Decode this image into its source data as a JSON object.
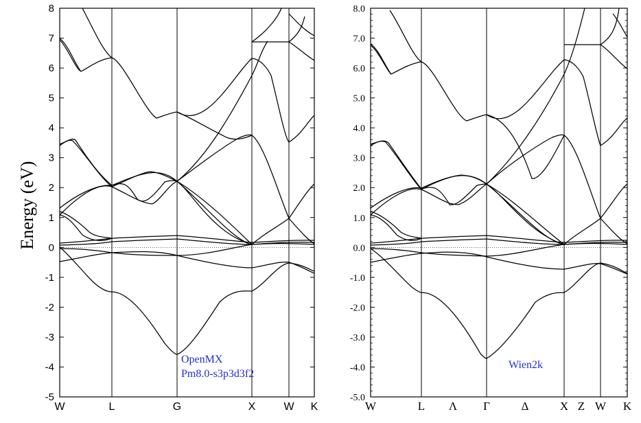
{
  "ylabel": "Energy (eV)",
  "chart_data": [
    {
      "type": "line",
      "ylim": [
        -5,
        8
      ],
      "ytick_labels": [
        "-5",
        "-4",
        "-3",
        "-2",
        "-1",
        "0",
        "1",
        "2",
        "3",
        "4",
        "5",
        "6",
        "7",
        "8"
      ],
      "kpoint_labels": [
        "W",
        "L",
        "G",
        "X",
        "W",
        "K"
      ],
      "annotation_lines": [
        "OpenMX",
        "Pm8.0-s3p3d3f2"
      ],
      "series": [
        {
          "x": [
            0,
            0.5,
            1
          ],
          "y": [
            -0.55,
            -0.45,
            -0.35
          ]
        },
        {
          "x": [
            0,
            1,
            2
          ],
          "y": [
            1.05,
            0.3,
            0.2
          ]
        },
        {
          "x": [
            0,
            1,
            2
          ],
          "y": [
            3.5,
            2.1,
            2.0
          ]
        },
        {
          "x": [
            0,
            1,
            2
          ],
          "y": [
            6.9,
            5.9,
            6.3
          ]
        }
      ]
    },
    {
      "type": "line",
      "ylim": [
        -5,
        8
      ],
      "ytick_labels": [
        "-5.0",
        "-4.0",
        "-3.0",
        "-2.0",
        "-1.0",
        "0.0",
        "1.0",
        "2.0",
        "3.0",
        "4.0",
        "5.0",
        "6.0",
        "7.0",
        "8.0"
      ],
      "kpoint_labels": [
        "W",
        "L",
        "Λ",
        "Γ",
        "Δ",
        "X",
        "Z",
        "W",
        "K"
      ],
      "annotation_lines": [
        "Wien2k"
      ],
      "series": [
        {
          "x": [
            0,
            0.5,
            1
          ],
          "y": [
            -0.55,
            -0.45,
            -0.35
          ]
        },
        {
          "x": [
            0,
            1,
            2
          ],
          "y": [
            1.05,
            0.3,
            0.2
          ]
        }
      ]
    }
  ]
}
